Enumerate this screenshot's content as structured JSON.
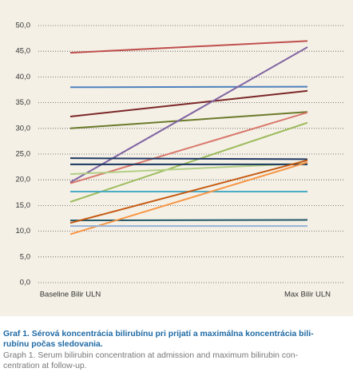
{
  "chart_data": {
    "type": "line",
    "categories": [
      "Baseline Bilir ULN",
      "Max Bilir ULN"
    ],
    "series": [
      {
        "color": "#c0504d",
        "values": [
          44.7,
          47.0
        ]
      },
      {
        "color": "#4f81bd",
        "values": [
          38.0,
          38.1
        ]
      },
      {
        "color": "#7b2626",
        "values": [
          32.3,
          37.3
        ]
      },
      {
        "color": "#6b7a2a",
        "values": [
          30.0,
          33.2
        ]
      },
      {
        "color": "#8064a2",
        "values": [
          19.5,
          45.8
        ]
      },
      {
        "color": "#d9766a",
        "values": [
          19.3,
          33.1
        ]
      },
      {
        "color": "#9bbb59",
        "values": [
          15.7,
          31.1
        ]
      },
      {
        "color": "#b3cf85",
        "values": [
          21.1,
          23.2
        ]
      },
      {
        "color": "#1f3864",
        "values": [
          24.2,
          24.0
        ]
      },
      {
        "color": "#17375e",
        "values": [
          23.0,
          23.0
        ]
      },
      {
        "color": "#4bacc6",
        "values": [
          17.7,
          17.7
        ]
      },
      {
        "color": "#215968",
        "values": [
          12.1,
          12.2
        ]
      },
      {
        "color": "#c55a11",
        "values": [
          11.6,
          23.8
        ]
      },
      {
        "color": "#f79646",
        "values": [
          9.4,
          23.4
        ]
      },
      {
        "color": "#95b3d7",
        "values": [
          11.0,
          11.0
        ]
      }
    ],
    "ylim": [
      0,
      50
    ],
    "yticks": [
      {
        "value": 0,
        "label": "0,0"
      },
      {
        "value": 5,
        "label": "5,0"
      },
      {
        "value": 10,
        "label": "10,0"
      },
      {
        "value": 15,
        "label": "15,0"
      },
      {
        "value": 20,
        "label": "20,0"
      },
      {
        "value": 25,
        "label": "25,0"
      },
      {
        "value": 30,
        "label": "30,0"
      },
      {
        "value": 35,
        "label": "35,0"
      },
      {
        "value": 40,
        "label": "40,0"
      },
      {
        "value": 45,
        "label": "45,0"
      },
      {
        "value": 50,
        "label": "50,0"
      }
    ],
    "grid": true,
    "caption_lines": [
      "Graf 1. Sérová koncentrácia bilirubínu pri prijatí a maximálna koncentrácia bili-",
      "rubínu počas sledovania."
    ],
    "caption_en_lines": [
      "Graph 1. Serum bilirubin concentration at admission and maximum bilirubin con-",
      "centration at follow-up."
    ]
  }
}
